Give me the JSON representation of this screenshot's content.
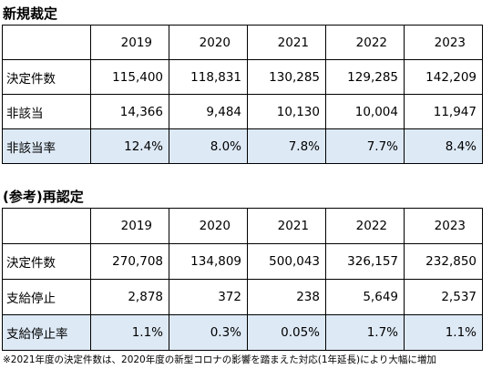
{
  "table1": {
    "title": "新規裁定",
    "years": [
      "2019",
      "2020",
      "2021",
      "2022",
      "2023"
    ],
    "rows": [
      {
        "label": "決定件数",
        "values": [
          "115,400",
          "118,831",
          "130,285",
          "129,285",
          "142,209"
        ],
        "highlight": false
      },
      {
        "label": "非該当",
        "values": [
          "14,366",
          "9,484",
          "10,130",
          "10,004",
          "11,947"
        ],
        "highlight": false
      },
      {
        "label": "非該当率",
        "values": [
          "12.4%",
          "8.0%",
          "7.8%",
          "7.7%",
          "8.4%"
        ],
        "highlight": true
      }
    ]
  },
  "table2": {
    "title": "(参考)再認定",
    "years": [
      "2019",
      "2020",
      "2021",
      "2022",
      "2023"
    ],
    "rows": [
      {
        "label": "決定件数",
        "values": [
          "270,708",
          "134,809",
          "500,043",
          "326,157",
          "232,850"
        ],
        "highlight": false
      },
      {
        "label": "支給停止",
        "values": [
          "2,878",
          "372",
          "238",
          "5,649",
          "2,537"
        ],
        "highlight": false
      },
      {
        "label": "支給停止率",
        "values": [
          "1.1%",
          "0.3%",
          "0.05%",
          "1.7%",
          "1.1%"
        ],
        "highlight": true
      }
    ]
  },
  "note": "※2021年度の決定件数は、2020年度の新型コロナの影響を踏まえた対応(1年延長)により大幅に増加",
  "colors": {
    "highlight_row": "#dde9f5",
    "border": "#000000"
  }
}
